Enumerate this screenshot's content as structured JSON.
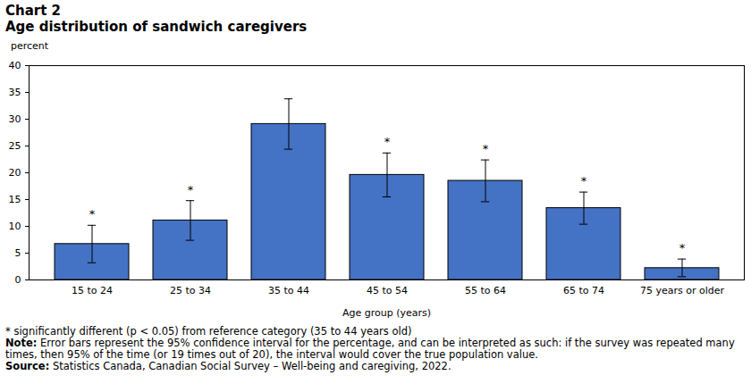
{
  "chart_data": {
    "type": "bar",
    "title": "Chart 2",
    "subtitle": "Age distribution of sandwich caregivers",
    "y_label": "percent",
    "x_label": "Age group (years)",
    "categories": [
      "15 to 24",
      "25 to 34",
      "35 to 44",
      "45 to 54",
      "55 to 64",
      "65 to 74",
      "75 years or older"
    ],
    "values": [
      6.7,
      11.1,
      29.1,
      19.6,
      18.5,
      13.4,
      2.2
    ],
    "error_low": [
      3.2,
      7.4,
      24.4,
      15.5,
      14.6,
      10.4,
      0.6
    ],
    "error_high": [
      10.2,
      14.8,
      33.8,
      23.7,
      22.4,
      16.4,
      3.9
    ],
    "significant": [
      true,
      true,
      false,
      true,
      true,
      true,
      true
    ],
    "significance_marker": "*",
    "color": "#4472c4",
    "ylim": [
      0,
      40
    ],
    "yticks": [
      0,
      5,
      10,
      15,
      20,
      25,
      30,
      35,
      40
    ],
    "grid": false,
    "footnotes": [
      {
        "label": "",
        "text": "* significantly different (p < 0.05) from reference category (35 to 44 years old)"
      },
      {
        "label": "Note:",
        "text": "Error bars represent the 95% confidence interval for the percentage, and can be interpreted as such: if the survey was repeated many times, then 95% of the time (or 19 times out of 20), the interval would cover the true population value."
      },
      {
        "label": "Source:",
        "text": "Statistics Canada, Canadian Social Survey – Well-being and caregiving, 2022."
      }
    ]
  }
}
